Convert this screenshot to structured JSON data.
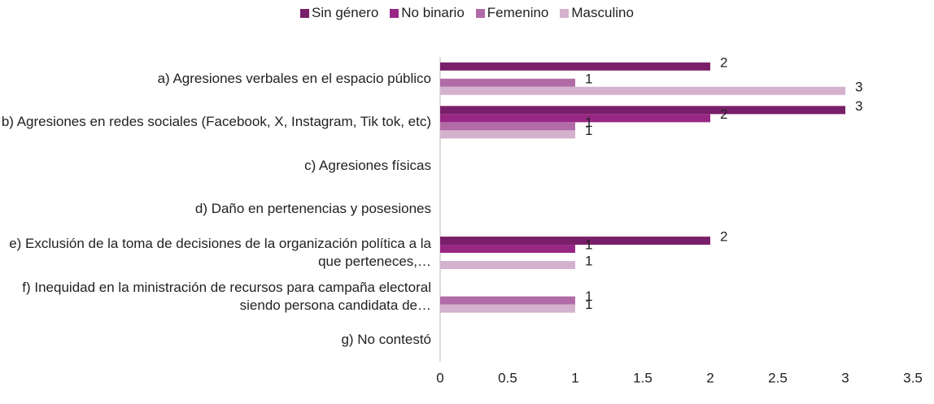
{
  "chart_data": {
    "type": "hbar",
    "categories": [
      "a) Agresiones verbales en el espacio público",
      "b) Agresiones en redes sociales (Facebook, X, Instagram, Tik tok, etc)",
      "c) Agresiones físicas",
      "d) Daño en pertenencias y posesiones",
      "e) Exclusión de la toma de decisiones de la organización política a la que perteneces,…",
      "f) Inequidad en la ministración de recursos para campaña electoral siendo persona candidata de…",
      "g) No contestó"
    ],
    "series": [
      {
        "name": "Sin género",
        "color": "#7a1f6a",
        "values": [
          2,
          3,
          null,
          null,
          2,
          null,
          null
        ]
      },
      {
        "name": "No binario",
        "color": "#982784",
        "values": [
          null,
          2,
          null,
          null,
          1,
          null,
          null
        ]
      },
      {
        "name": "Femenino",
        "color": "#b16ba6",
        "values": [
          1,
          1,
          null,
          null,
          null,
          1,
          null
        ]
      },
      {
        "name": "Masculino",
        "color": "#d4b1cd",
        "values": [
          3,
          1,
          null,
          null,
          1,
          1,
          null
        ]
      }
    ],
    "xlim": [
      0,
      3.5
    ],
    "xticks": [
      0,
      0.5,
      1,
      1.5,
      2,
      2.5,
      3,
      3.5
    ]
  }
}
